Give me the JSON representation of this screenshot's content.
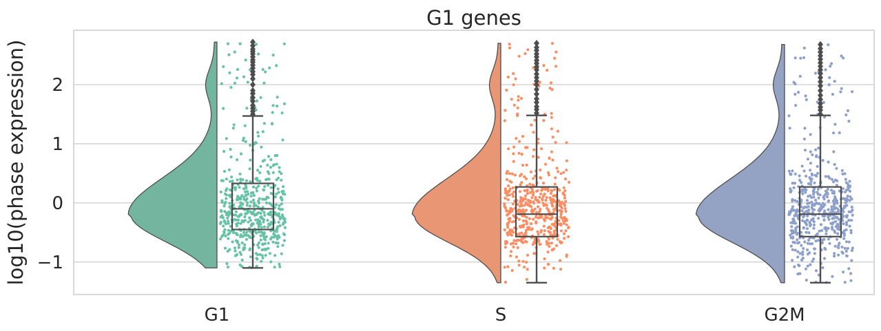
{
  "chart_data": {
    "type": "raincloud",
    "title": "G1 genes",
    "xlabel": "",
    "ylabel": "log10(phase expression)",
    "categories": [
      "G1",
      "S",
      "G2M"
    ],
    "ylim": [
      -1.55,
      2.92
    ],
    "yticks": [
      -1,
      0,
      1,
      2
    ],
    "ytick_labels": [
      "−1",
      "0",
      "1",
      "2"
    ],
    "grid": "horizontal",
    "series": [
      {
        "category": "G1",
        "color": "#66c2a5",
        "violin_color": "#74b5a0",
        "data_min": -1.1,
        "data_max": 2.72,
        "mode": -0.2,
        "box": {
          "q1": -0.45,
          "median": -0.1,
          "q3": 0.33,
          "whisker_low": -1.1,
          "whisker_high": 1.47
        },
        "outliers": [
          1.5,
          1.55,
          1.6,
          1.65,
          1.72,
          1.78,
          1.85,
          1.9,
          2.0,
          2.1,
          2.17,
          2.22,
          2.28,
          2.33,
          2.38,
          2.42,
          2.47,
          2.52,
          2.56,
          2.6,
          2.66,
          2.72
        ]
      },
      {
        "category": "S",
        "color": "#fc8d62",
        "violin_color": "#e89674",
        "data_min": -1.35,
        "data_max": 2.7,
        "mode": -0.22,
        "box": {
          "q1": -0.57,
          "median": -0.19,
          "q3": 0.27,
          "whisker_low": -1.35,
          "whisker_high": 1.48
        },
        "outliers": [
          1.52,
          1.58,
          1.63,
          1.7,
          1.76,
          1.84,
          1.92,
          2.0,
          2.06,
          2.12,
          2.18,
          2.25,
          2.3,
          2.36,
          2.41,
          2.47,
          2.52,
          2.58,
          2.63,
          2.7
        ]
      },
      {
        "category": "G2M",
        "color": "#8da0cb",
        "violin_color": "#94a3c4",
        "data_min": -1.35,
        "data_max": 2.68,
        "mode": -0.22,
        "box": {
          "q1": -0.57,
          "median": -0.19,
          "q3": 0.27,
          "whisker_low": -1.35,
          "whisker_high": 1.48
        },
        "outliers": [
          1.5,
          1.57,
          1.62,
          1.68,
          1.75,
          1.82,
          1.9,
          1.98,
          2.05,
          2.12,
          2.19,
          2.25,
          2.31,
          2.37,
          2.43,
          2.49,
          2.55,
          2.61,
          2.68
        ]
      }
    ]
  }
}
